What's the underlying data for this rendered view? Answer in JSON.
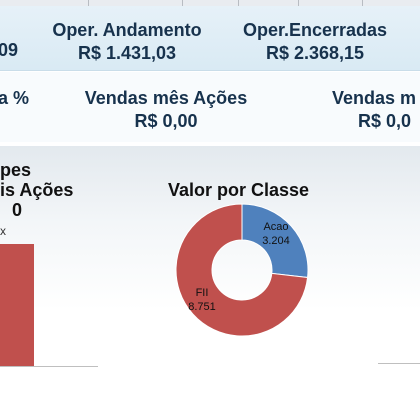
{
  "kpis_row1": {
    "left_partial_value": "09",
    "oper_andamento": {
      "label": "Oper. Andamento",
      "value": "R$ 1.431,03"
    },
    "oper_encerradas": {
      "label": "Oper.Encerradas",
      "value": "R$ 2.368,15"
    }
  },
  "kpis_row2": {
    "left_partial_label": "a %",
    "vendas_mes_acoes": {
      "label": "Vendas mês Ações",
      "value": "R$ 0,00"
    },
    "right_partial_label": "Vendas m",
    "right_partial_value": "R$ 0,0"
  },
  "left_chart": {
    "title_line1": "pes",
    "title_line2": "is Ações",
    "title_line3": "0",
    "axis_partial_label": "x"
  },
  "donut_chart": {
    "title": "Valor por Classe",
    "colors": {
      "acao": "#4f81bd",
      "fii": "#c0504d"
    }
  },
  "chart_data": {
    "type": "pie",
    "title": "Valor por Classe",
    "categories": [
      "Acao",
      "FII"
    ],
    "values": [
      3204,
      8751
    ],
    "labels": [
      "3.204",
      "8.751"
    ],
    "donut": true
  }
}
